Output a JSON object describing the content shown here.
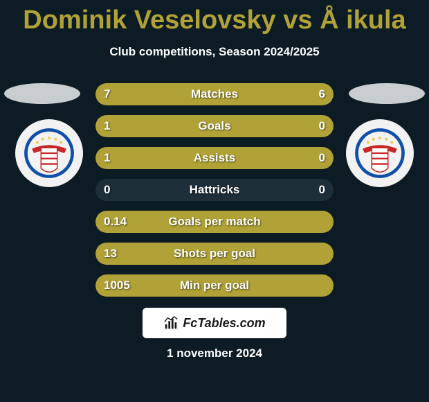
{
  "title": "Dominik Veselovsky vs Å ikula",
  "subtitle": "Club competitions, Season 2024/2025",
  "colors": {
    "background": "#0d1b24",
    "accent": "#b0a236",
    "bar_track": "#1e2f3a",
    "text": "#ffffff"
  },
  "badge": {
    "outer": "#0f4fa8",
    "ring": "#f2c94c",
    "banner": "#c62828",
    "stripes": "#c62828"
  },
  "stats": [
    {
      "label": "Matches",
      "left_value": "7",
      "right_value": "6",
      "left_pct": 52,
      "right_pct": 48
    },
    {
      "label": "Goals",
      "left_value": "1",
      "right_value": "0",
      "left_pct": 78,
      "right_pct": 22
    },
    {
      "label": "Assists",
      "left_value": "1",
      "right_value": "0",
      "left_pct": 78,
      "right_pct": 22
    },
    {
      "label": "Hattricks",
      "left_value": "0",
      "right_value": "0",
      "left_pct": 0,
      "right_pct": 0
    },
    {
      "label": "Goals per match",
      "left_value": "0.14",
      "right_value": "",
      "left_pct": 100,
      "right_pct": 0
    },
    {
      "label": "Shots per goal",
      "left_value": "13",
      "right_value": "",
      "left_pct": 100,
      "right_pct": 0
    },
    {
      "label": "Min per goal",
      "left_value": "1005",
      "right_value": "",
      "left_pct": 100,
      "right_pct": 0
    }
  ],
  "footer_brand": "FcTables.com",
  "date": "1 november 2024"
}
